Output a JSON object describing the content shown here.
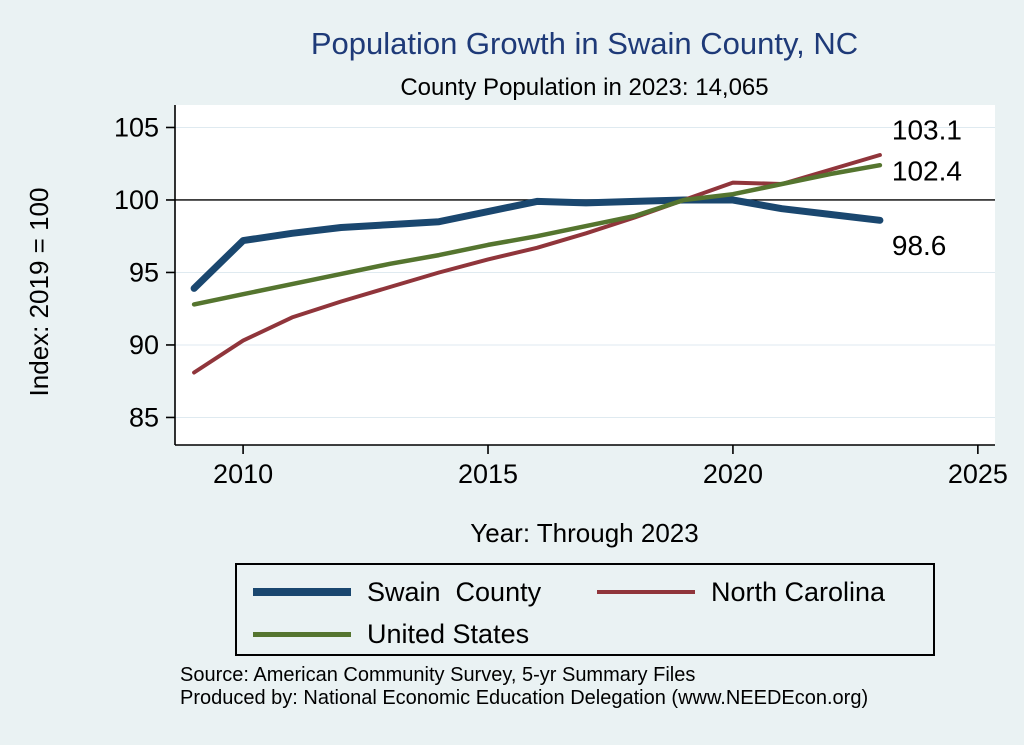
{
  "chart_data": {
    "type": "line",
    "title": "Population Growth in Swain County, NC",
    "subtitle": "County Population in 2023: 14,065",
    "xlabel": "Year: Through 2023",
    "ylabel": "Index: 2019 = 100",
    "x": [
      2009,
      2010,
      2011,
      2012,
      2013,
      2014,
      2015,
      2016,
      2017,
      2018,
      2019,
      2020,
      2021,
      2022,
      2023
    ],
    "xticks": [
      2010,
      2015,
      2020,
      2025
    ],
    "yticks": [
      85,
      90,
      95,
      100,
      105
    ],
    "xlim": [
      2008.61,
      2025.35
    ],
    "ylim": [
      83.1,
      106.55
    ],
    "reference_line_y": 100,
    "grid": true,
    "legend_position": "bottom",
    "series": [
      {
        "name": "Swain  County",
        "color": "#1a476f",
        "line_width": 7,
        "end_label": "98.6",
        "values": [
          93.9,
          97.2,
          97.7,
          98.1,
          98.3,
          98.5,
          99.2,
          99.9,
          99.8,
          99.9,
          100.0,
          100.0,
          99.4,
          99.0,
          98.6
        ]
      },
      {
        "name": "North Carolina",
        "color": "#90353b",
        "line_width": 4,
        "end_label": "103.1",
        "values": [
          88.1,
          90.3,
          91.9,
          93.0,
          94.0,
          95.0,
          95.9,
          96.7,
          97.7,
          98.8,
          100.0,
          101.2,
          101.1,
          102.1,
          103.1
        ]
      },
      {
        "name": "United States",
        "color": "#55752f",
        "line_width": 4.5,
        "end_label": "102.4",
        "values": [
          92.8,
          93.5,
          94.2,
          94.9,
          95.6,
          96.2,
          96.9,
          97.5,
          98.2,
          98.9,
          100.0,
          100.4,
          101.1,
          101.8,
          102.4
        ]
      }
    ]
  },
  "footer": {
    "source_line1": "Source: American Community Survey, 5-yr Summary Files",
    "source_line2": "Produced by: National Economic Education Delegation (www.NEEDEcon.org)"
  },
  "colors": {
    "background": "#eaf2f3",
    "plot_background": "#ffffff",
    "title_color": "#1e3a78",
    "grid_color": "#dfeaf0",
    "axis_color": "#000000"
  }
}
